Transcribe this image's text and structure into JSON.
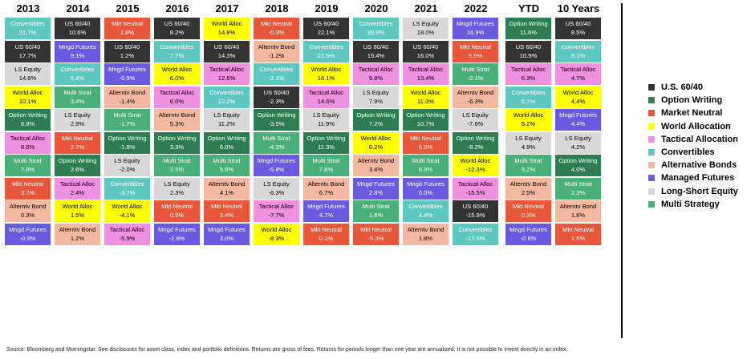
{
  "chart_data": {
    "type": "table",
    "columns": [
      "2013",
      "2014",
      "2015",
      "2016",
      "2017",
      "2018",
      "2019",
      "2020",
      "2021",
      "2022",
      "YTD",
      "10 Years"
    ],
    "rows_by_column": [
      [
        [
          "Convertibles",
          "21.7%"
        ],
        [
          "US 60/40",
          "17.7%"
        ],
        [
          "LS Equity",
          "14.6%"
        ],
        [
          "World Alloc",
          "10.1%"
        ],
        [
          "Option Writing",
          "8.9%"
        ],
        [
          "Tactical Alloc",
          "8.6%"
        ],
        [
          "Multi Strat",
          "7.0%"
        ],
        [
          "Mkt Neutral",
          "3.7%"
        ],
        [
          "Alterntv Bond",
          "0.3%"
        ],
        [
          "Mngd Futures",
          "-0.9%"
        ]
      ],
      [
        [
          "US 60/40",
          "10.6%"
        ],
        [
          "Mngd Futures",
          "9.1%"
        ],
        [
          "Convertibles",
          "6.4%"
        ],
        [
          "Multi Strat",
          "3.4%"
        ],
        [
          "LS Equity",
          "2.9%"
        ],
        [
          "Mkt Neutral",
          "2.7%"
        ],
        [
          "Option Writing",
          "2.6%"
        ],
        [
          "Tactical Alloc",
          "2.4%"
        ],
        [
          "World Alloc",
          "1.5%"
        ],
        [
          "Alterntv Bond",
          "1.2%"
        ]
      ],
      [
        [
          "Mkt Neutral",
          "1.8%"
        ],
        [
          "US 60/40",
          "1.2%"
        ],
        [
          "Mngd Futures",
          "-0.9%"
        ],
        [
          "Alterntv Bond",
          "-1.4%"
        ],
        [
          "Multi Strat",
          "-1.7%"
        ],
        [
          "Option Writing",
          "-1.8%"
        ],
        [
          "LS Equity",
          "-2.0%"
        ],
        [
          "Convertibles",
          "-3.7%"
        ],
        [
          "World Alloc",
          "-4.1%"
        ],
        [
          "Tactical Alloc",
          "-5.9%"
        ]
      ],
      [
        [
          "US 60/40",
          "8.2%"
        ],
        [
          "Convertibles",
          "7.7%"
        ],
        [
          "World Alloc",
          "6.0%"
        ],
        [
          "Tactical Alloc",
          "6.0%"
        ],
        [
          "Alterntv Bond",
          "5.3%"
        ],
        [
          "Option Writing",
          "3.3%"
        ],
        [
          "Multi Strat",
          "2.5%"
        ],
        [
          "LS Equity",
          "2.3%"
        ],
        [
          "Mkt Neutral",
          "0.9%"
        ],
        [
          "Mngd Futures",
          "-2.8%"
        ]
      ],
      [
        [
          "World Alloc",
          "14.8%"
        ],
        [
          "US 60/40",
          "14.3%"
        ],
        [
          "Tactical Alloc",
          "12.6%"
        ],
        [
          "Convertibles",
          "12.2%"
        ],
        [
          "LS Equity",
          "11.2%"
        ],
        [
          "Option Writing",
          "6.0%"
        ],
        [
          "Multi Strat",
          "5.6%"
        ],
        [
          "Alterntv Bond",
          "4.1%"
        ],
        [
          "Mkt Neutral",
          "3.4%"
        ],
        [
          "Mngd Futures",
          "3.0%"
        ]
      ],
      [
        [
          "Mkt Neutral",
          "-0.3%"
        ],
        [
          "Alterntv Bond",
          "-1.2%"
        ],
        [
          "Convertibles",
          "-2.1%"
        ],
        [
          "US 60/40",
          "-2.3%"
        ],
        [
          "Option Writing",
          "-3.5%"
        ],
        [
          "Multi Strat",
          "-4.3%"
        ],
        [
          "Mngd Futures",
          "-5.8%"
        ],
        [
          "LS Equity",
          "-6.3%"
        ],
        [
          "Tactical Alloc",
          "-7.7%"
        ],
        [
          "World Alloc",
          "-8.3%"
        ]
      ],
      [
        [
          "US 60/40",
          "22.1%"
        ],
        [
          "Convertibles",
          "21.5%"
        ],
        [
          "World Alloc",
          "16.1%"
        ],
        [
          "Tactical Alloc",
          "14.6%"
        ],
        [
          "LS Equity",
          "11.9%"
        ],
        [
          "Option Writing",
          "11.3%"
        ],
        [
          "Multi Strat",
          "7.8%"
        ],
        [
          "Alterntv Bond",
          "6.7%"
        ],
        [
          "Mngd Futures",
          "4.7%"
        ],
        [
          "Mkt Neutral",
          "0.1%"
        ]
      ],
      [
        [
          "Convertibles",
          "39.9%"
        ],
        [
          "US 60/40",
          "15.4%"
        ],
        [
          "Tactical Alloc",
          "9.8%"
        ],
        [
          "LS Equity",
          "7.9%"
        ],
        [
          "Option Writing",
          "7.2%"
        ],
        [
          "World Alloc",
          "6.2%"
        ],
        [
          "Alterntv Bond",
          "3.4%"
        ],
        [
          "Mngd Futures",
          "2.8%"
        ],
        [
          "Multi Strat",
          "1.6%"
        ],
        [
          "Mkt Neutral",
          "-5.3%"
        ]
      ],
      [
        [
          "LS Equity",
          "18.0%"
        ],
        [
          "US 60/40",
          "16.0%"
        ],
        [
          "Tactical Alloc",
          "13.4%"
        ],
        [
          "World Alloc",
          "11.3%"
        ],
        [
          "Option Writing",
          "10.7%"
        ],
        [
          "Mkt Neutral",
          "6.9%"
        ],
        [
          "Multi Strat",
          "6.9%"
        ],
        [
          "Mngd Futures",
          "5.0%"
        ],
        [
          "Convertibles",
          "4.4%"
        ],
        [
          "Alterntv Bond",
          "1.8%"
        ]
      ],
      [
        [
          "Mngd Futures",
          "16.9%"
        ],
        [
          "Mkt Neutral",
          "5.9%"
        ],
        [
          "Multi Strat",
          "-2.1%"
        ],
        [
          "Alterntv Bond",
          "-6.3%"
        ],
        [
          "LS Equity",
          "-7.6%"
        ],
        [
          "Option Writing",
          "-9.2%"
        ],
        [
          "World Alloc",
          "-12.3%"
        ],
        [
          "Tactical Alloc",
          "-15.5%"
        ],
        [
          "US 60/40",
          "-15.9%"
        ],
        [
          "Convertibles",
          "-17.5%"
        ]
      ],
      [
        [
          "Option Writing",
          "11.6%"
        ],
        [
          "US 60/40",
          "10.9%"
        ],
        [
          "Tactical Alloc",
          "6.3%"
        ],
        [
          "Convertibles",
          "5.7%"
        ],
        [
          "World Alloc",
          "5.2%"
        ],
        [
          "LS Equity",
          "4.9%"
        ],
        [
          "Multi Strat",
          "3.2%"
        ],
        [
          "Alterntv Bond",
          "2.5%"
        ],
        [
          "Mkt Neutral",
          "0.3%"
        ],
        [
          "Mngd Futures",
          "-0.6%"
        ]
      ],
      [
        [
          "US 60/40",
          "8.5%"
        ],
        [
          "Convertibles",
          "8.1%"
        ],
        [
          "Tactical Alloc",
          "4.7%"
        ],
        [
          "World Alloc",
          "4.4%"
        ],
        [
          "Mngd Futures",
          "4.4%"
        ],
        [
          "LS Equity",
          "4.2%"
        ],
        [
          "Option Writing",
          "4.0%"
        ],
        [
          "Multi Strat",
          "2.3%"
        ],
        [
          "Alterntv Bond",
          "1.8%"
        ],
        [
          "Mkt Neutral",
          "1.5%"
        ]
      ]
    ],
    "category_colors": {
      "US 60/40": {
        "bg": "#333333",
        "fg": "#ffffff"
      },
      "Option Writing": {
        "bg": "#2e7d52",
        "fg": "#ffffff"
      },
      "Mkt Neutral": {
        "bg": "#e8573a",
        "fg": "#ffffff"
      },
      "World Alloc": {
        "bg": "#ffff00",
        "fg": "#000000"
      },
      "Tactical Alloc": {
        "bg": "#f090e0",
        "fg": "#000000"
      },
      "Convertibles": {
        "bg": "#5cc8c0",
        "fg": "#ffffff"
      },
      "Alterntv Bond": {
        "bg": "#f4b8a0",
        "fg": "#000000"
      },
      "Mngd Futures": {
        "bg": "#6a5ae0",
        "fg": "#ffffff"
      },
      "LS Equity": {
        "bg": "#d8d8d8",
        "fg": "#000000"
      },
      "Multi Strat": {
        "bg": "#4ab07a",
        "fg": "#ffffff"
      }
    },
    "legend": [
      {
        "label": "U.S. 60/40",
        "color": "#333333"
      },
      {
        "label": "Option Writing",
        "color": "#2e7d52"
      },
      {
        "label": "Market Neutral",
        "color": "#e8573a"
      },
      {
        "label": "World Allocation",
        "color": "#ffff00"
      },
      {
        "label": "Tactical Allocation",
        "color": "#f090e0"
      },
      {
        "label": "Convertibles",
        "color": "#5cc8c0"
      },
      {
        "label": "Alternative Bonds",
        "color": "#f4b8a0"
      },
      {
        "label": "Managed Futures",
        "color": "#6a5ae0"
      },
      {
        "label": "Long-Short Equity",
        "color": "#d8d8d8"
      },
      {
        "label": "Multi Strategy",
        "color": "#4ab07a"
      }
    ]
  },
  "footnote": "Source: Bloomberg and Morningstar. See disclosures for asset class, index and portfolio definitions. Returns are gross of fees. Returns for periods longer than one year are annualized. It is not possible to invest directly in an index."
}
